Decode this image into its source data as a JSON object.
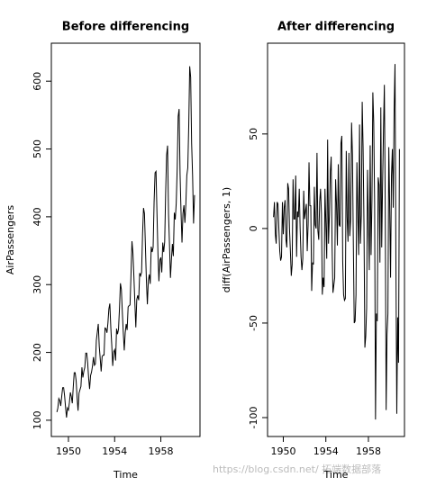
{
  "chart_data": [
    {
      "type": "line",
      "title": "Before differencing",
      "xlabel": "Time",
      "ylabel": "AirPassengers",
      "color": "#000000",
      "xlim": [
        1948.52,
        1961.39
      ],
      "ylim": [
        76,
        656
      ],
      "xticks": [
        1950,
        1954,
        1958
      ],
      "yticks": [
        100,
        200,
        300,
        400,
        500,
        600
      ],
      "x": [
        1949,
        1949.083,
        1949.167,
        1949.25,
        1949.333,
        1949.417,
        1949.5,
        1949.583,
        1949.667,
        1949.75,
        1949.833,
        1949.917,
        1950,
        1950.083,
        1950.167,
        1950.25,
        1950.333,
        1950.417,
        1950.5,
        1950.583,
        1950.667,
        1950.75,
        1950.833,
        1950.917,
        1951,
        1951.083,
        1951.167,
        1951.25,
        1951.333,
        1951.417,
        1951.5,
        1951.583,
        1951.667,
        1951.75,
        1951.833,
        1951.917,
        1952,
        1952.083,
        1952.167,
        1952.25,
        1952.333,
        1952.417,
        1952.5,
        1952.583,
        1952.667,
        1952.75,
        1952.833,
        1952.917,
        1953,
        1953.083,
        1953.167,
        1953.25,
        1953.333,
        1953.417,
        1953.5,
        1953.583,
        1953.667,
        1953.75,
        1953.833,
        1953.917,
        1954,
        1954.083,
        1954.167,
        1954.25,
        1954.333,
        1954.417,
        1954.5,
        1954.583,
        1954.667,
        1954.75,
        1954.833,
        1954.917,
        1955,
        1955.083,
        1955.167,
        1955.25,
        1955.333,
        1955.417,
        1955.5,
        1955.583,
        1955.667,
        1955.75,
        1955.833,
        1955.917,
        1956,
        1956.083,
        1956.167,
        1956.25,
        1956.333,
        1956.417,
        1956.5,
        1956.583,
        1956.667,
        1956.75,
        1956.833,
        1956.917,
        1957,
        1957.083,
        1957.167,
        1957.25,
        1957.333,
        1957.417,
        1957.5,
        1957.583,
        1957.667,
        1957.75,
        1957.833,
        1957.917,
        1958,
        1958.083,
        1958.167,
        1958.25,
        1958.333,
        1958.417,
        1958.5,
        1958.583,
        1958.667,
        1958.75,
        1958.833,
        1958.917,
        1959,
        1959.083,
        1959.167,
        1959.25,
        1959.333,
        1959.417,
        1959.5,
        1959.583,
        1959.667,
        1959.75,
        1959.833,
        1959.917,
        1960,
        1960.083,
        1960.167,
        1960.25,
        1960.333,
        1960.417,
        1960.5,
        1960.583,
        1960.667,
        1960.75,
        1960.833,
        1960.917
      ],
      "values": [
        112,
        118,
        132,
        129,
        121,
        135,
        148,
        148,
        136,
        119,
        104,
        118,
        115,
        126,
        141,
        135,
        125,
        149,
        170,
        170,
        158,
        133,
        114,
        140,
        145,
        150,
        178,
        163,
        172,
        178,
        199,
        199,
        184,
        162,
        146,
        166,
        171,
        180,
        193,
        181,
        183,
        218,
        230,
        242,
        209,
        191,
        172,
        194,
        196,
        196,
        236,
        235,
        229,
        243,
        264,
        272,
        237,
        211,
        180,
        201,
        204,
        188,
        235,
        227,
        234,
        264,
        302,
        293,
        259,
        229,
        203,
        229,
        242,
        233,
        267,
        269,
        270,
        315,
        364,
        347,
        312,
        274,
        237,
        278,
        284,
        277,
        317,
        313,
        318,
        374,
        413,
        405,
        355,
        306,
        271,
        306,
        315,
        301,
        356,
        348,
        355,
        422,
        465,
        467,
        404,
        347,
        305,
        336,
        340,
        318,
        362,
        348,
        363,
        435,
        491,
        505,
        404,
        359,
        310,
        337,
        360,
        342,
        406,
        396,
        420,
        472,
        548,
        559,
        463,
        407,
        362,
        405,
        417,
        391,
        419,
        461,
        472,
        535,
        622,
        606,
        508,
        461,
        390,
        432
      ]
    },
    {
      "type": "line",
      "title": "After differencing",
      "xlabel": "Time",
      "ylabel": "diff(AirPassengers, 1)",
      "color": "#000000",
      "xlim": [
        1948.52,
        1961.39
      ],
      "ylim": [
        -110,
        98
      ],
      "xticks": [
        1950,
        1954,
        1958
      ],
      "yticks": [
        -100,
        -50,
        0,
        50
      ],
      "x": [
        1949.083,
        1949.167,
        1949.25,
        1949.333,
        1949.417,
        1949.5,
        1949.583,
        1949.667,
        1949.75,
        1949.833,
        1949.917,
        1950,
        1950.083,
        1950.167,
        1950.25,
        1950.333,
        1950.417,
        1950.5,
        1950.583,
        1950.667,
        1950.75,
        1950.833,
        1950.917,
        1951,
        1951.083,
        1951.167,
        1951.25,
        1951.333,
        1951.417,
        1951.5,
        1951.583,
        1951.667,
        1951.75,
        1951.833,
        1951.917,
        1952,
        1952.083,
        1952.167,
        1952.25,
        1952.333,
        1952.417,
        1952.5,
        1952.583,
        1952.667,
        1952.75,
        1952.833,
        1952.917,
        1953,
        1953.083,
        1953.167,
        1953.25,
        1953.333,
        1953.417,
        1953.5,
        1953.583,
        1953.667,
        1953.75,
        1953.833,
        1953.917,
        1954,
        1954.083,
        1954.167,
        1954.25,
        1954.333,
        1954.417,
        1954.5,
        1954.583,
        1954.667,
        1954.75,
        1954.833,
        1954.917,
        1955,
        1955.083,
        1955.167,
        1955.25,
        1955.333,
        1955.417,
        1955.5,
        1955.583,
        1955.667,
        1955.75,
        1955.833,
        1955.917,
        1956,
        1956.083,
        1956.167,
        1956.25,
        1956.333,
        1956.417,
        1956.5,
        1956.583,
        1956.667,
        1956.75,
        1956.833,
        1956.917,
        1957,
        1957.083,
        1957.167,
        1957.25,
        1957.333,
        1957.417,
        1957.5,
        1957.583,
        1957.667,
        1957.75,
        1957.833,
        1957.917,
        1958,
        1958.083,
        1958.167,
        1958.25,
        1958.333,
        1958.417,
        1958.5,
        1958.583,
        1958.667,
        1958.75,
        1958.833,
        1958.917,
        1959,
        1959.083,
        1959.167,
        1959.25,
        1959.333,
        1959.417,
        1959.5,
        1959.583,
        1959.667,
        1959.75,
        1959.833,
        1959.917,
        1960,
        1960.083,
        1960.167,
        1960.25,
        1960.333,
        1960.417,
        1960.5,
        1960.583,
        1960.667,
        1960.75,
        1960.833,
        1960.917
      ],
      "values": [
        6,
        14,
        -3,
        -8,
        14,
        13,
        0,
        -12,
        -17,
        -15,
        14,
        -3,
        11,
        15,
        -6,
        -10,
        24,
        21,
        0,
        -12,
        -25,
        -19,
        26,
        5,
        5,
        28,
        -15,
        9,
        6,
        21,
        0,
        -15,
        -22,
        -16,
        20,
        5,
        9,
        13,
        -12,
        2,
        35,
        12,
        12,
        -33,
        -18,
        -19,
        22,
        2,
        0,
        40,
        -1,
        -6,
        14,
        21,
        8,
        -35,
        -26,
        -31,
        21,
        3,
        -16,
        47,
        -8,
        7,
        30,
        38,
        -9,
        -34,
        -30,
        -26,
        26,
        13,
        -9,
        34,
        2,
        1,
        45,
        49,
        -17,
        -35,
        -38,
        -37,
        41,
        6,
        -7,
        40,
        -4,
        5,
        56,
        39,
        -8,
        -50,
        -49,
        -35,
        35,
        9,
        -14,
        55,
        -8,
        7,
        67,
        43,
        2,
        -63,
        -57,
        -42,
        31,
        4,
        -22,
        44,
        -14,
        15,
        72,
        56,
        14,
        -101,
        -45,
        -49,
        27,
        23,
        -18,
        64,
        -10,
        24,
        52,
        76,
        11,
        -96,
        -56,
        -45,
        43,
        12,
        -26,
        28,
        42,
        11,
        63,
        87,
        -16,
        -98,
        -47,
        -71,
        42
      ]
    }
  ],
  "watermark": "https://blog.csdn.net/  拓端数据部落"
}
